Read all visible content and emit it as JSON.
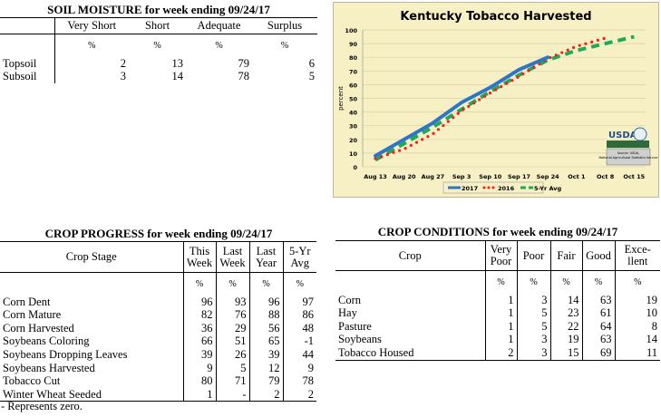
{
  "soil_moisture": {
    "title": "SOIL MOISTURE for week ending 09/24/17",
    "columns": [
      "Very Short",
      "Short",
      "Adequate",
      "Surplus"
    ],
    "unit": "%",
    "rows": [
      {
        "label": "Topsoil",
        "values": [
          "2",
          "13",
          "79",
          "6"
        ]
      },
      {
        "label": "Subsoil",
        "values": [
          "3",
          "14",
          "78",
          "5"
        ]
      }
    ]
  },
  "crop_progress": {
    "title": "CROP PROGRESS for week ending 09/24/17",
    "stage_header": "Crop Stage",
    "columns": [
      [
        "This",
        "Week"
      ],
      [
        "Last",
        "Week"
      ],
      [
        "Last",
        "Year"
      ],
      [
        "5-Yr",
        "Avg"
      ]
    ],
    "unit": "%",
    "rows": [
      {
        "label": "Corn Dent",
        "values": [
          "96",
          "93",
          "96",
          "97"
        ]
      },
      {
        "label": "Corn Mature",
        "values": [
          "82",
          "76",
          "88",
          "86"
        ]
      },
      {
        "label": "Corn Harvested",
        "values": [
          "36",
          "29",
          "56",
          "48"
        ]
      },
      {
        "label": "Soybeans Coloring",
        "values": [
          "66",
          "51",
          "65",
          "-1"
        ]
      },
      {
        "label": "Soybeans Dropping Leaves",
        "values": [
          "39",
          "26",
          "39",
          "44"
        ]
      },
      {
        "label": "Soybeans Harvested",
        "values": [
          "9",
          "5",
          "12",
          "9"
        ]
      },
      {
        "label": "Tobacco Cut",
        "values": [
          "80",
          "71",
          "79",
          "78"
        ]
      },
      {
        "label": "Winter Wheat Seeded",
        "values": [
          "1",
          "-",
          "2",
          "2"
        ]
      }
    ],
    "footnote": "- Represents zero."
  },
  "crop_conditions": {
    "title": "CROP CONDITIONS for week ending 09/24/17",
    "crop_header": "Crop",
    "columns": [
      [
        "Very",
        "Poor"
      ],
      [
        "Poor",
        ""
      ],
      [
        "Fair",
        ""
      ],
      [
        "Good",
        ""
      ],
      [
        "Exce-",
        "llent"
      ]
    ],
    "unit": "%",
    "rows": [
      {
        "label": "Corn",
        "values": [
          "1",
          "3",
          "14",
          "63",
          "19"
        ]
      },
      {
        "label": "Hay",
        "values": [
          "1",
          "5",
          "23",
          "61",
          "10"
        ]
      },
      {
        "label": "Pasture",
        "values": [
          "1",
          "5",
          "22",
          "64",
          "8"
        ]
      },
      {
        "label": "Soybeans",
        "values": [
          "1",
          "3",
          "19",
          "63",
          "14"
        ]
      },
      {
        "label": "Tobacco Housed",
        "values": [
          "2",
          "3",
          "15",
          "69",
          "11"
        ]
      }
    ]
  },
  "chart_data": {
    "type": "line",
    "title": "Kentucky Tobacco Harvested",
    "xlabel": "",
    "ylabel": "percent",
    "ylim": [
      0,
      100
    ],
    "yticks": [
      0,
      10,
      20,
      30,
      40,
      50,
      60,
      70,
      80,
      90,
      100
    ],
    "categories": [
      "Aug 13",
      "Aug 20",
      "Aug 27",
      "Sep 3",
      "Sep 10",
      "Sep 17",
      "Sep 24",
      "Oct 1",
      "Oct 8",
      "Oct 15"
    ],
    "grid": true,
    "legend": "bottom",
    "series": [
      {
        "name": "2017",
        "color": "#2e75c6",
        "style": "solid",
        "values": [
          8,
          20,
          32,
          47,
          58,
          71,
          80,
          null,
          null,
          null
        ]
      },
      {
        "name": "2016",
        "color": "#ff1a1a",
        "style": "dotted",
        "values": [
          6,
          13,
          24,
          41,
          54,
          66,
          79,
          88,
          94,
          null
        ]
      },
      {
        "name": "5-Yr Avg",
        "color": "#22a85a",
        "style": "dashed",
        "values": [
          5,
          17,
          29,
          42,
          55,
          67,
          78,
          85,
          90,
          95
        ]
      }
    ],
    "logo_text": "USDA",
    "source_note": "Source: USDA, National Agricultural Statistics Service",
    "colors": {
      "background": "#f6f0c4",
      "border": "#bdb89a"
    }
  }
}
